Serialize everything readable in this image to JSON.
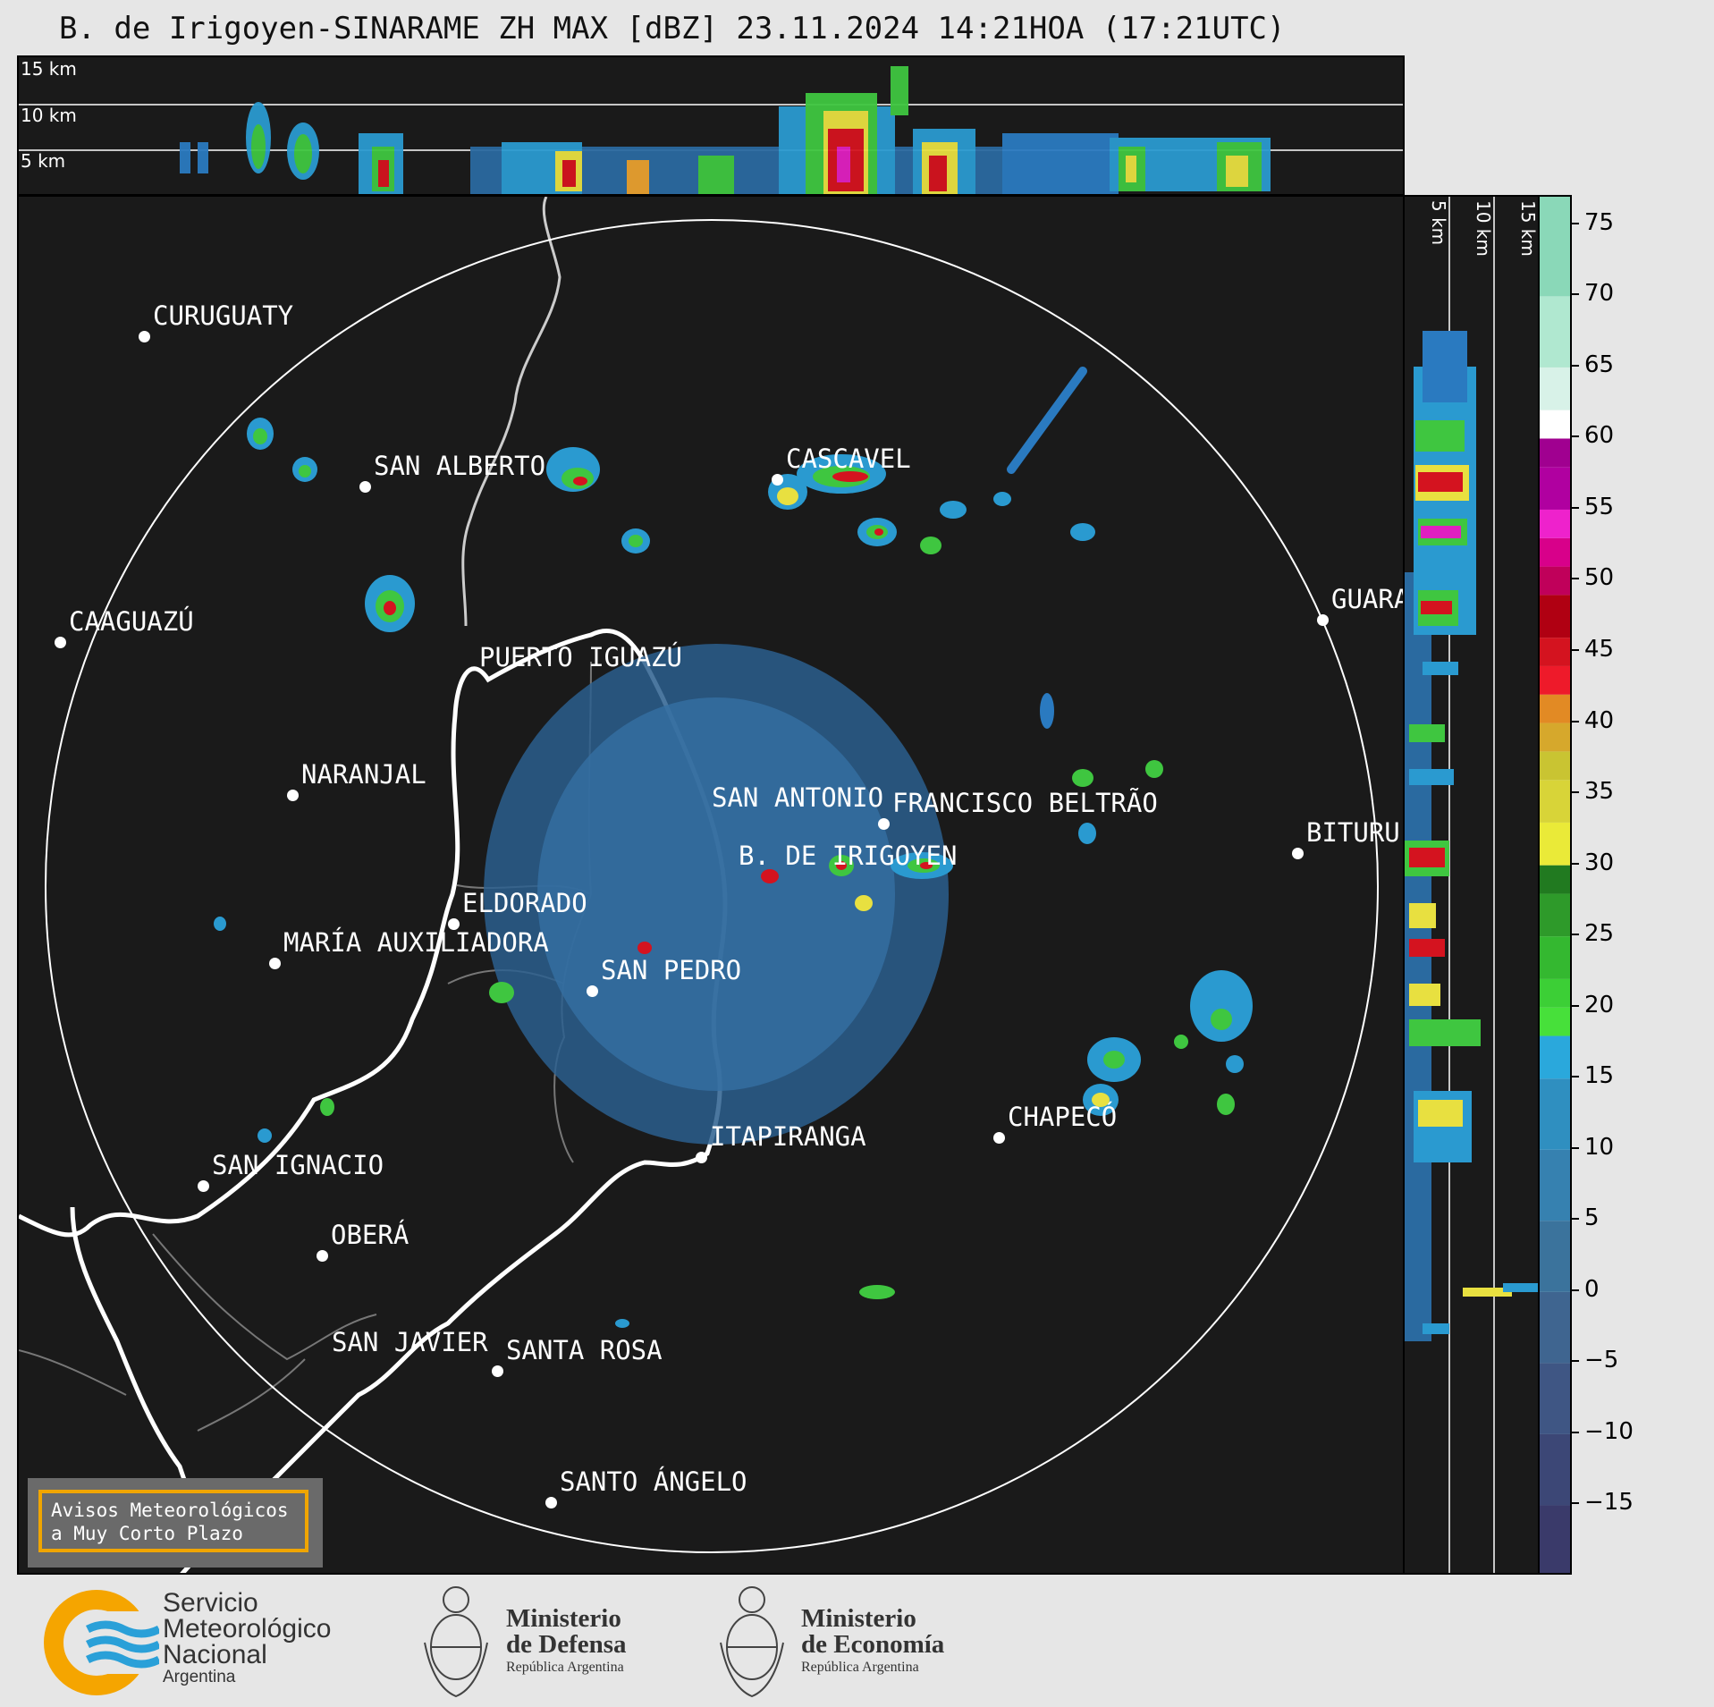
{
  "title": "B. de Irigoyen-SINARAME ZH MAX [dBZ] 23.11.2024 14:21HOA (17:21UTC)",
  "top_section": {
    "height_labels": [
      "15 km",
      "10 km",
      "5 km"
    ]
  },
  "side_section": {
    "height_labels": [
      "5 km",
      "10 km",
      "15 km"
    ]
  },
  "map": {
    "cities": [
      {
        "name": "CURUGUATY"
      },
      {
        "name": "SAN ALBERTO"
      },
      {
        "name": "CASCAVEL"
      },
      {
        "name": "CAAGUAZÚ"
      },
      {
        "name": "GUARA"
      },
      {
        "name": "PUERTO IGUAZÚ"
      },
      {
        "name": "NARANJAL"
      },
      {
        "name": "SAN ANTONIO"
      },
      {
        "name": "FRANCISCO BELTRÃO"
      },
      {
        "name": "BITURU"
      },
      {
        "name": "B. DE IRIGOYEN"
      },
      {
        "name": "ELDORADO"
      },
      {
        "name": "MARÍA AUXILIADORA"
      },
      {
        "name": "SAN PEDRO"
      },
      {
        "name": "CHAPECÓ"
      },
      {
        "name": "ITAPIRANGA"
      },
      {
        "name": "SAN IGNACIO"
      },
      {
        "name": "OBERÁ"
      },
      {
        "name": "SAN JAVIER"
      },
      {
        "name": "SANTA ROSA"
      },
      {
        "name": "SANTO ÁNGELO"
      }
    ],
    "warning_box": {
      "line1": "Avisos Meteorológicos",
      "line2": "a Muy Corto Plazo",
      "border_color": "#f0a500"
    }
  },
  "colorbar": {
    "unit": "dBZ",
    "ticks": [
      "75",
      "70",
      "65",
      "60",
      "55",
      "50",
      "45",
      "40",
      "35",
      "30",
      "25",
      "20",
      "15",
      "10",
      "5",
      "0",
      "−5",
      "−10",
      "−15"
    ],
    "range": [
      -20,
      77
    ]
  },
  "footer": {
    "smn": {
      "line1": "Servicio",
      "line2": "Meteorológico",
      "line3": "Nacional",
      "line4": "Argentina"
    },
    "defensa": {
      "line1": "Ministerio",
      "line2": "de Defensa",
      "line3": "República Argentina"
    },
    "economia": {
      "line1": "Ministerio",
      "line2": "de Economía",
      "line3": "República Argentina"
    }
  }
}
